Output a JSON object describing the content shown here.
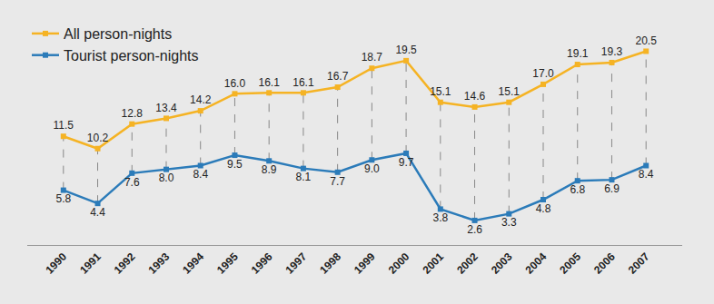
{
  "chart_data": {
    "type": "line",
    "categories": [
      "1990",
      "1991",
      "1992",
      "1993",
      "1994",
      "1995",
      "1996",
      "1997",
      "1998",
      "1999",
      "2000",
      "2001",
      "2002",
      "2003",
      "2004",
      "2005",
      "2006",
      "2007"
    ],
    "series": [
      {
        "name": "All person-nights",
        "color": "#f5b324",
        "marker": "square",
        "line_style": "solid",
        "values": [
          11.5,
          10.2,
          12.8,
          13.4,
          14.2,
          16.0,
          16.1,
          16.1,
          16.7,
          18.7,
          19.5,
          15.1,
          14.6,
          15.1,
          17.0,
          19.1,
          19.3,
          20.5
        ],
        "value_labels": [
          "11.5",
          "10.2",
          "12.8",
          "13.4",
          "14.2",
          "16.0",
          "16.1",
          "16.1",
          "16.7",
          "18.7",
          "19.5",
          "15.1",
          "14.6",
          "15.1",
          "17.0",
          "19.1",
          "19.3",
          "20.5"
        ]
      },
      {
        "name": "Tourist person-nights",
        "color": "#2b7bb9",
        "marker": "square",
        "line_style": "solid",
        "values": [
          5.8,
          4.4,
          7.6,
          8.0,
          8.4,
          9.5,
          8.9,
          8.1,
          7.7,
          9.0,
          9.7,
          3.8,
          2.6,
          3.3,
          4.8,
          6.8,
          6.9,
          8.4
        ],
        "value_labels": [
          "5.8",
          "4.4",
          "7.6",
          "8.0",
          "8.4",
          "9.5",
          "8.9",
          "8.1",
          "7.7",
          "9.0",
          "9.7",
          "3.8",
          "2.6",
          "3.3",
          "4.8",
          "6.8",
          "6.9",
          "8.4"
        ]
      }
    ],
    "ylim": [
      0,
      24
    ],
    "yticks": [],
    "grid": false,
    "legend": "top left",
    "data_labels": true,
    "tick_labels": "x"
  }
}
